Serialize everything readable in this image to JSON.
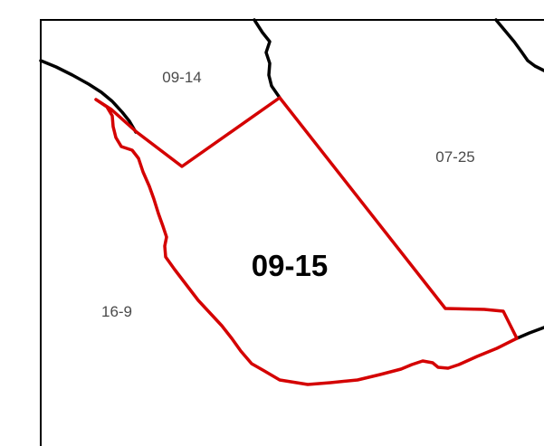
{
  "map": {
    "colors": {
      "background": "#ffffff",
      "frame": "#000000",
      "boundary": "#000000",
      "selected_parcel": "#d40000",
      "label": "#4a4a4a",
      "main_label": "#000000"
    },
    "selected_parcel_label": "09-15",
    "neighbor_labels": {
      "north": "09-14",
      "east": "07-25",
      "west": "16-9"
    }
  }
}
